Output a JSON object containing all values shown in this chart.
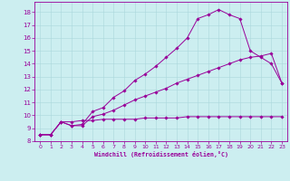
{
  "xlabel": "Windchill (Refroidissement éolien,°C)",
  "bg_color": "#cceef0",
  "grid_color": "#aad8dc",
  "line_color": "#990099",
  "xlim": [
    -0.5,
    23.5
  ],
  "ylim": [
    8,
    18.8
  ],
  "yticks": [
    8,
    9,
    10,
    11,
    12,
    13,
    14,
    15,
    16,
    17,
    18
  ],
  "xticks": [
    0,
    1,
    2,
    3,
    4,
    5,
    6,
    7,
    8,
    9,
    10,
    11,
    12,
    13,
    14,
    15,
    16,
    17,
    18,
    19,
    20,
    21,
    22,
    23
  ],
  "line1_x": [
    0,
    1,
    2,
    3,
    4,
    5,
    6,
    7,
    8,
    9,
    10,
    11,
    12,
    13,
    14,
    15,
    16,
    17,
    18,
    19,
    20,
    21,
    22,
    23
  ],
  "line1_y": [
    8.5,
    8.5,
    9.5,
    9.5,
    9.6,
    9.6,
    9.7,
    9.7,
    9.7,
    9.7,
    9.8,
    9.8,
    9.8,
    9.8,
    9.9,
    9.9,
    9.9,
    9.9,
    9.9,
    9.9,
    9.9,
    9.9,
    9.9,
    9.9
  ],
  "line2_x": [
    0,
    1,
    2,
    3,
    4,
    5,
    6,
    7,
    8,
    9,
    10,
    11,
    12,
    13,
    14,
    15,
    16,
    17,
    18,
    19,
    20,
    21,
    22,
    23
  ],
  "line2_y": [
    8.5,
    8.5,
    9.5,
    9.2,
    9.2,
    9.9,
    10.1,
    10.4,
    10.8,
    11.2,
    11.5,
    11.8,
    12.1,
    12.5,
    12.8,
    13.1,
    13.4,
    13.7,
    14.0,
    14.3,
    14.5,
    14.6,
    14.8,
    12.5
  ],
  "line3_x": [
    0,
    1,
    2,
    3,
    4,
    5,
    6,
    7,
    8,
    9,
    10,
    11,
    12,
    13,
    14,
    15,
    16,
    17,
    18,
    19,
    20,
    21,
    22,
    23
  ],
  "line3_y": [
    8.5,
    8.5,
    9.5,
    9.2,
    9.3,
    10.3,
    10.6,
    11.4,
    11.9,
    12.7,
    13.2,
    13.8,
    14.5,
    15.2,
    16.0,
    17.5,
    17.8,
    18.2,
    17.8,
    17.5,
    15.0,
    14.5,
    14.0,
    12.5
  ]
}
